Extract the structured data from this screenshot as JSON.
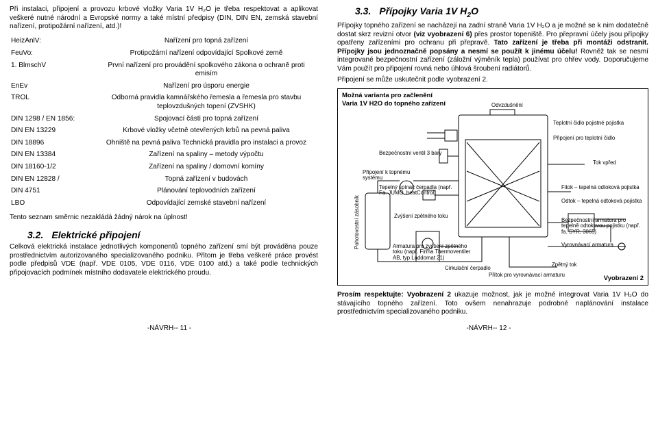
{
  "left": {
    "intro": "Při instalaci, připojení a provozu krbové vložky Varia 1V H₂O je třeba respektovat a aplikovat veškeré nutné národní a Evropské normy a také místní předpisy (DIN, DIN EN, zemská stavební nařízení, protipožární nařízení, atd.)!",
    "regs": [
      {
        "k": "HeizAnlV:",
        "v": "Nařízení pro topná zařízení"
      },
      {
        "k": "FeuVo:",
        "v": "Protipožární nařízení odpovídající Spolkové země"
      },
      {
        "k": "1. BlmschV",
        "v": "První nařízení pro provádění spolkového zákona o ochraně proti emisím"
      },
      {
        "k": "EnEv",
        "v": "Nařízení pro úsporu energie"
      },
      {
        "k": "TROL",
        "v": "Odborná pravidla kamnářského řemesla a řemesla pro stavbu teplovzdušných topení (ZVSHK)"
      },
      {
        "k": "DIN 1298 / EN 1856:",
        "v": "Spojovací části pro topná zařízení"
      },
      {
        "k": "DIN EN 13229",
        "v": "Krbové vložky včetně otevřených krbů na pevná paliva"
      },
      {
        "k": "DIN 18896",
        "v": "Ohniště na pevná paliva\nTechnická pravidla pro instalaci a provoz"
      },
      {
        "k": "DIN EN 13384",
        "v": "Zařízení na spaliny – metody výpočtu"
      },
      {
        "k": "DIN 18160-1/2",
        "v": "Zařízení na spaliny / domovní komíny"
      },
      {
        "k": "DIN EN 12828 /",
        "v": "Topná zařízení v budovách"
      },
      {
        "k": "DIN 4751",
        "v": "Plánování teplovodních zařízení"
      },
      {
        "k": "LBO",
        "v": "Odpovídající zemské stavební nařízení"
      }
    ],
    "notice": "Tento seznam směrnic nezakládá žádný nárok na úplnost!",
    "sec_num": "3.2.",
    "sec_title": "Elektrické připojení",
    "body1": "Celková elektrická instalace jednotlivých komponentů topného zařízení smí být prováděna pouze prostřednictvím autorizovaného specializovaného podniku. Přitom je třeba veškeré práce provést podle předpisů VDE (např. VDE 0105, VDE 0116, VDE 0100 atd.) a také podle technických připojovacích podmínek místního dodavatele elektrického proudu."
  },
  "right": {
    "sec_num": "3.3.",
    "sec_title": "Přípojky Varia 1V H₂O",
    "para1": "Přípojky topného zařízení se nacházejí na zadní straně Varia 1V H₂O a je možné se k nim dodatečně dostat skrz revizní otvor (viz vyobrazení 6) přes prostor topeniště. Pro přepravní účely jsou přípojky opatřeny zařízeními pro ochranu při přepravě. Tato zařízení je třeba při montáži odstranit. Přípojky jsou jednoznačně popsány a nesmí se použít k jinému účelu! Rovněž tak se nesmí integrované bezpečnostní zařízení (záložní výměník tepla) používat pro ohřev vody. Doporučujeme Vám použít pro připojení rovná nebo úhlová šroubení radiátorů.",
    "para2": "Připojení se může uskutečnit podle vyobrazení 2.",
    "diagram": {
      "title1": "Možná varianta pro začlenění",
      "title2": "Varia 1V H2O do topného zařízení",
      "labels": {
        "odvz": "Odvzdušnění",
        "teplotni_cidlo": "Teplotní čidlo\npojistné pojistka",
        "comin": "Připojení\npro teplotní čidlo",
        "ventil3b": "Bezpečnostní ventil 3 bary",
        "kominu": "Připojení k\ntopnému systému",
        "tok_vpred": "Tok vpřed",
        "tepelny_spinac": "Tepelný spínač čerpadla\n(např. Fa. JUMO, heatControl)",
        "pohotovost": "Pohotovostní zásobník",
        "zvyseni": "Zvýšení\nzpětného toku",
        "fitok": "Fitok – tepelná\nodtoková pojistka",
        "odtok": "Odtok – tepelná\nodtoková pojistka",
        "bezpecnost": "Bezpečnostní armatura pro\ntepelně odtokovou pojistku\n(např. fa. SYR, 3065)",
        "armatura": "Armatura pro zvýšení\nzpětného toku\n(např. Firma Thermoventiler AB,\ntyp Laddomat 21)",
        "vyrovnavaci": "Vyrovnávací armatura",
        "zpetny_tok": "Zpětný tok",
        "cirkulace": "Cirkulační\nčerpadlo",
        "prítok": "Přítok pro vyrovnávací armaturu"
      },
      "caption": "Vyobrazení 2"
    },
    "prosim_lead": "Prosím respektujte: Vyobrazení 2",
    "prosim_rest": " ukazuje možnost, jak je možné integrovat Varia 1V H₂O do stávajícího topného zařízení. Toto ovšem nenahrazuje podrobné naplánování instalace prostřednictvím specializovaného podniku."
  },
  "footer": {
    "left": "-NÁVRH-- 11 -",
    "right": "-NÁVRH-- 12 -"
  }
}
